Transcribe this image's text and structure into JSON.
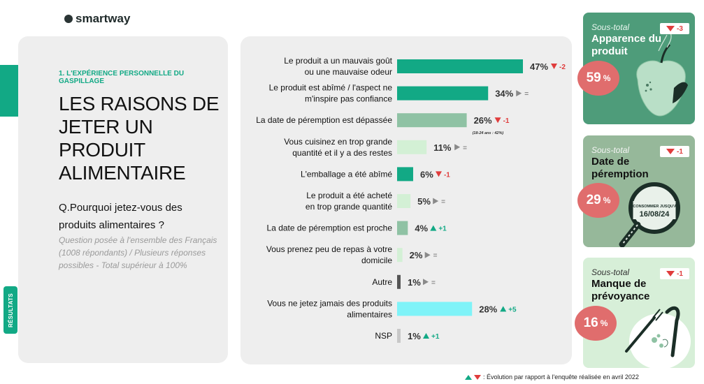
{
  "brand": {
    "logo_text": "smartway"
  },
  "side_label": "RÉSULTATS",
  "section": {
    "label": "1. L'EXPÉRIENCE PERSONNELLE DU GASPILLAGE"
  },
  "title": "LES RAISONS DE JETER UN PRODUIT ALIMENTAIRE",
  "question": "Q.Pourquoi jetez-vous des produits alimentaires ?",
  "note": "Question posée à l'ensemble des Français (1008 répondants) / Plusieurs réponses possibles - Total supérieur à 100%",
  "chart_data": {
    "type": "bar",
    "orientation": "horizontal",
    "categories": [
      "Le produit a un mauvais goût ou une mauvaise odeur",
      "Le produit est abîmé / l'aspect ne m'inspire pas confiance",
      "La date de péremption est dépassée",
      "Vous cuisinez en trop grande quantité et il y a des restes",
      "L'emballage a été abîmé",
      "Le produit a été acheté en trop grande quantité",
      "La date de péremption est proche",
      "Vous prenez peu de repas à votre domicile",
      "Autre",
      "Vous ne jetez jamais des produits alimentaires",
      "NSP"
    ],
    "label_lines": [
      [
        "Le produit a un mauvais goût",
        "ou une mauvaise odeur"
      ],
      [
        "Le produit est abîmé / l'aspect ne",
        "m'inspire pas confiance"
      ],
      [
        "La date de péremption est dépassée"
      ],
      [
        "Vous cuisinez en trop grande",
        "quantité et il y a des restes"
      ],
      [
        "L'emballage a été abîmé"
      ],
      [
        "Le produit a été acheté",
        "en trop grande quantité"
      ],
      [
        "La date de péremption est proche"
      ],
      [
        "Vous prenez peu de repas à votre",
        "domicile"
      ],
      [
        "Autre"
      ],
      [
        "Vous ne jetez jamais des produits",
        "alimentaires"
      ],
      [
        "NSP"
      ]
    ],
    "values": [
      47,
      34,
      26,
      11,
      6,
      5,
      4,
      2,
      1,
      28,
      1
    ],
    "value_labels": [
      "47%",
      "34%",
      "26%",
      "11%",
      "6%",
      "5%",
      "4%",
      "2%",
      "1%",
      "28%",
      "1%"
    ],
    "evolution": [
      {
        "dir": "down",
        "text": "-2"
      },
      {
        "dir": "right",
        "text": "="
      },
      {
        "dir": "down",
        "text": "-1"
      },
      {
        "dir": "right",
        "text": "="
      },
      {
        "dir": "down",
        "text": "-1"
      },
      {
        "dir": "right",
        "text": "="
      },
      {
        "dir": "up",
        "text": "+1"
      },
      {
        "dir": "right",
        "text": "="
      },
      {
        "dir": "right",
        "text": "="
      },
      {
        "dir": "up",
        "text": "+5"
      },
      {
        "dir": "up",
        "text": "+1"
      }
    ],
    "bar_colors": [
      "#12a985",
      "#12a985",
      "#8fc2a4",
      "#d3f0d5",
      "#12a985",
      "#d3f0d5",
      "#8fc2a4",
      "#d3f0d5",
      "#555555",
      "#7ff3f8",
      "#c8c8c8"
    ],
    "annotation": "(18-24 ans : 42%)",
    "xlim": [
      0,
      47
    ]
  },
  "cards": [
    {
      "sub": "Sous-total",
      "title": "Apparence du produit",
      "pct": "59",
      "pct_sign": "%",
      "evo": "-3"
    },
    {
      "sub": "Sous-total",
      "title": "Date de péremption",
      "pct": "29",
      "pct_sign": "%",
      "evo": "-1",
      "stamp_top": "À CONSOMMER JUSQU'AU",
      "stamp_date": "16/08/24"
    },
    {
      "sub": "Sous-total",
      "title": "Manque de prévoyance",
      "pct": "16",
      "pct_sign": "%",
      "evo": "-1"
    }
  ],
  "footer": ": Évolution par rapport à l'enquête réalisée en avril 2022",
  "colors": {
    "accent": "#12a985",
    "down": "#e03c3c",
    "up": "#12a985",
    "neutral": "#8a8a8a",
    "badge": "#e06d6d"
  }
}
